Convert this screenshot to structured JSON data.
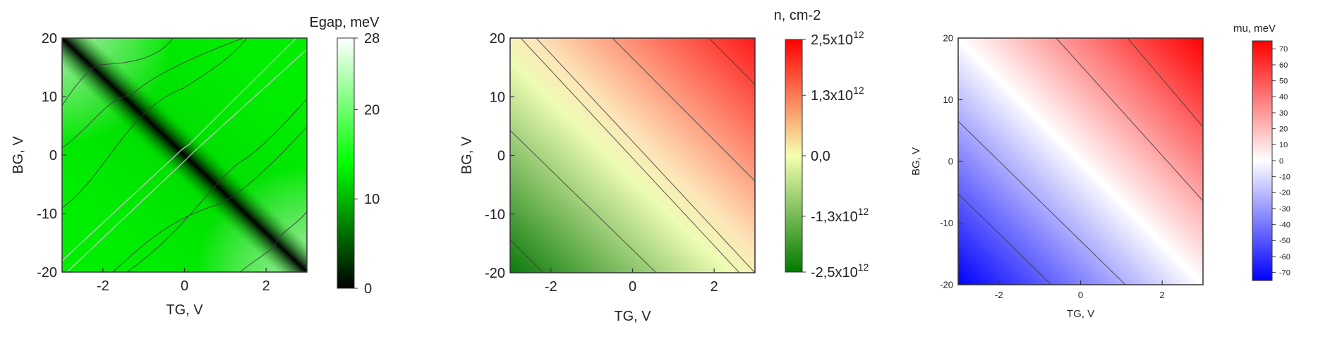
{
  "chart_data": [
    {
      "type": "heatmap",
      "xlabel": "TG, V",
      "ylabel": "BG, V",
      "xlim": [
        -3,
        3
      ],
      "ylim": [
        -20,
        20
      ],
      "x_ticks": [
        -2,
        0,
        2
      ],
      "y_ticks": [
        -20,
        -10,
        0,
        10,
        20
      ],
      "colorbar": {
        "title": "Egap, meV",
        "range": [
          0,
          28
        ],
        "ticks": [
          {
            "value": 0,
            "label": "0"
          },
          {
            "value": 10,
            "label": "10"
          },
          {
            "value": 20,
            "label": "20"
          },
          {
            "value": 28,
            "label": "28"
          }
        ],
        "colors": [
          "#000000",
          "#00ff00",
          "#ffffff"
        ]
      }
    },
    {
      "type": "heatmap",
      "xlabel": "TG, V",
      "ylabel": "BG, V",
      "xlim": [
        -3,
        3
      ],
      "ylim": [
        -20,
        20
      ],
      "x_ticks": [
        -2,
        0,
        2
      ],
      "y_ticks": [
        -20,
        -10,
        0,
        10,
        20
      ],
      "colorbar": {
        "title": "n, cm-2",
        "range": [
          -2500000000000.0,
          2500000000000.0
        ],
        "ticks": [
          {
            "value": 2500000000000.0,
            "label": "2,5x10",
            "exp": "12"
          },
          {
            "value": 1300000000000.0,
            "label": "1,3x10",
            "exp": "12"
          },
          {
            "value": 0,
            "label": "0,0",
            "exp": ""
          },
          {
            "value": -1300000000000.0,
            "label": "-1,3x10",
            "exp": "12"
          },
          {
            "value": -2500000000000.0,
            "label": "-2,5x10",
            "exp": "12"
          }
        ],
        "colors": [
          "#007a00",
          "#f5ffb0",
          "#ff0000"
        ]
      }
    },
    {
      "type": "heatmap",
      "xlabel": "TG, V",
      "ylabel": "BG, V",
      "xlim": [
        -3,
        3
      ],
      "ylim": [
        -20,
        20
      ],
      "x_ticks": [
        -2,
        0,
        2
      ],
      "y_ticks": [
        -20,
        -10,
        0,
        10,
        20
      ],
      "colorbar": {
        "title": "mu, meV",
        "range": [
          -75,
          75
        ],
        "ticks": [
          {
            "value": 70,
            "label": "70"
          },
          {
            "value": 60,
            "label": "60"
          },
          {
            "value": 50,
            "label": "50"
          },
          {
            "value": 40,
            "label": "40"
          },
          {
            "value": 30,
            "label": "30"
          },
          {
            "value": 20,
            "label": "20"
          },
          {
            "value": 10,
            "label": "10"
          },
          {
            "value": 0,
            "label": "0"
          },
          {
            "value": -10,
            "label": "-10"
          },
          {
            "value": -20,
            "label": "-20"
          },
          {
            "value": -30,
            "label": "-30"
          },
          {
            "value": -40,
            "label": "-40"
          },
          {
            "value": -50,
            "label": "-50"
          },
          {
            "value": -60,
            "label": "-60"
          },
          {
            "value": -70,
            "label": "-70"
          }
        ],
        "colors": [
          "#0000ff",
          "#ffffff",
          "#ff0000"
        ]
      }
    }
  ]
}
